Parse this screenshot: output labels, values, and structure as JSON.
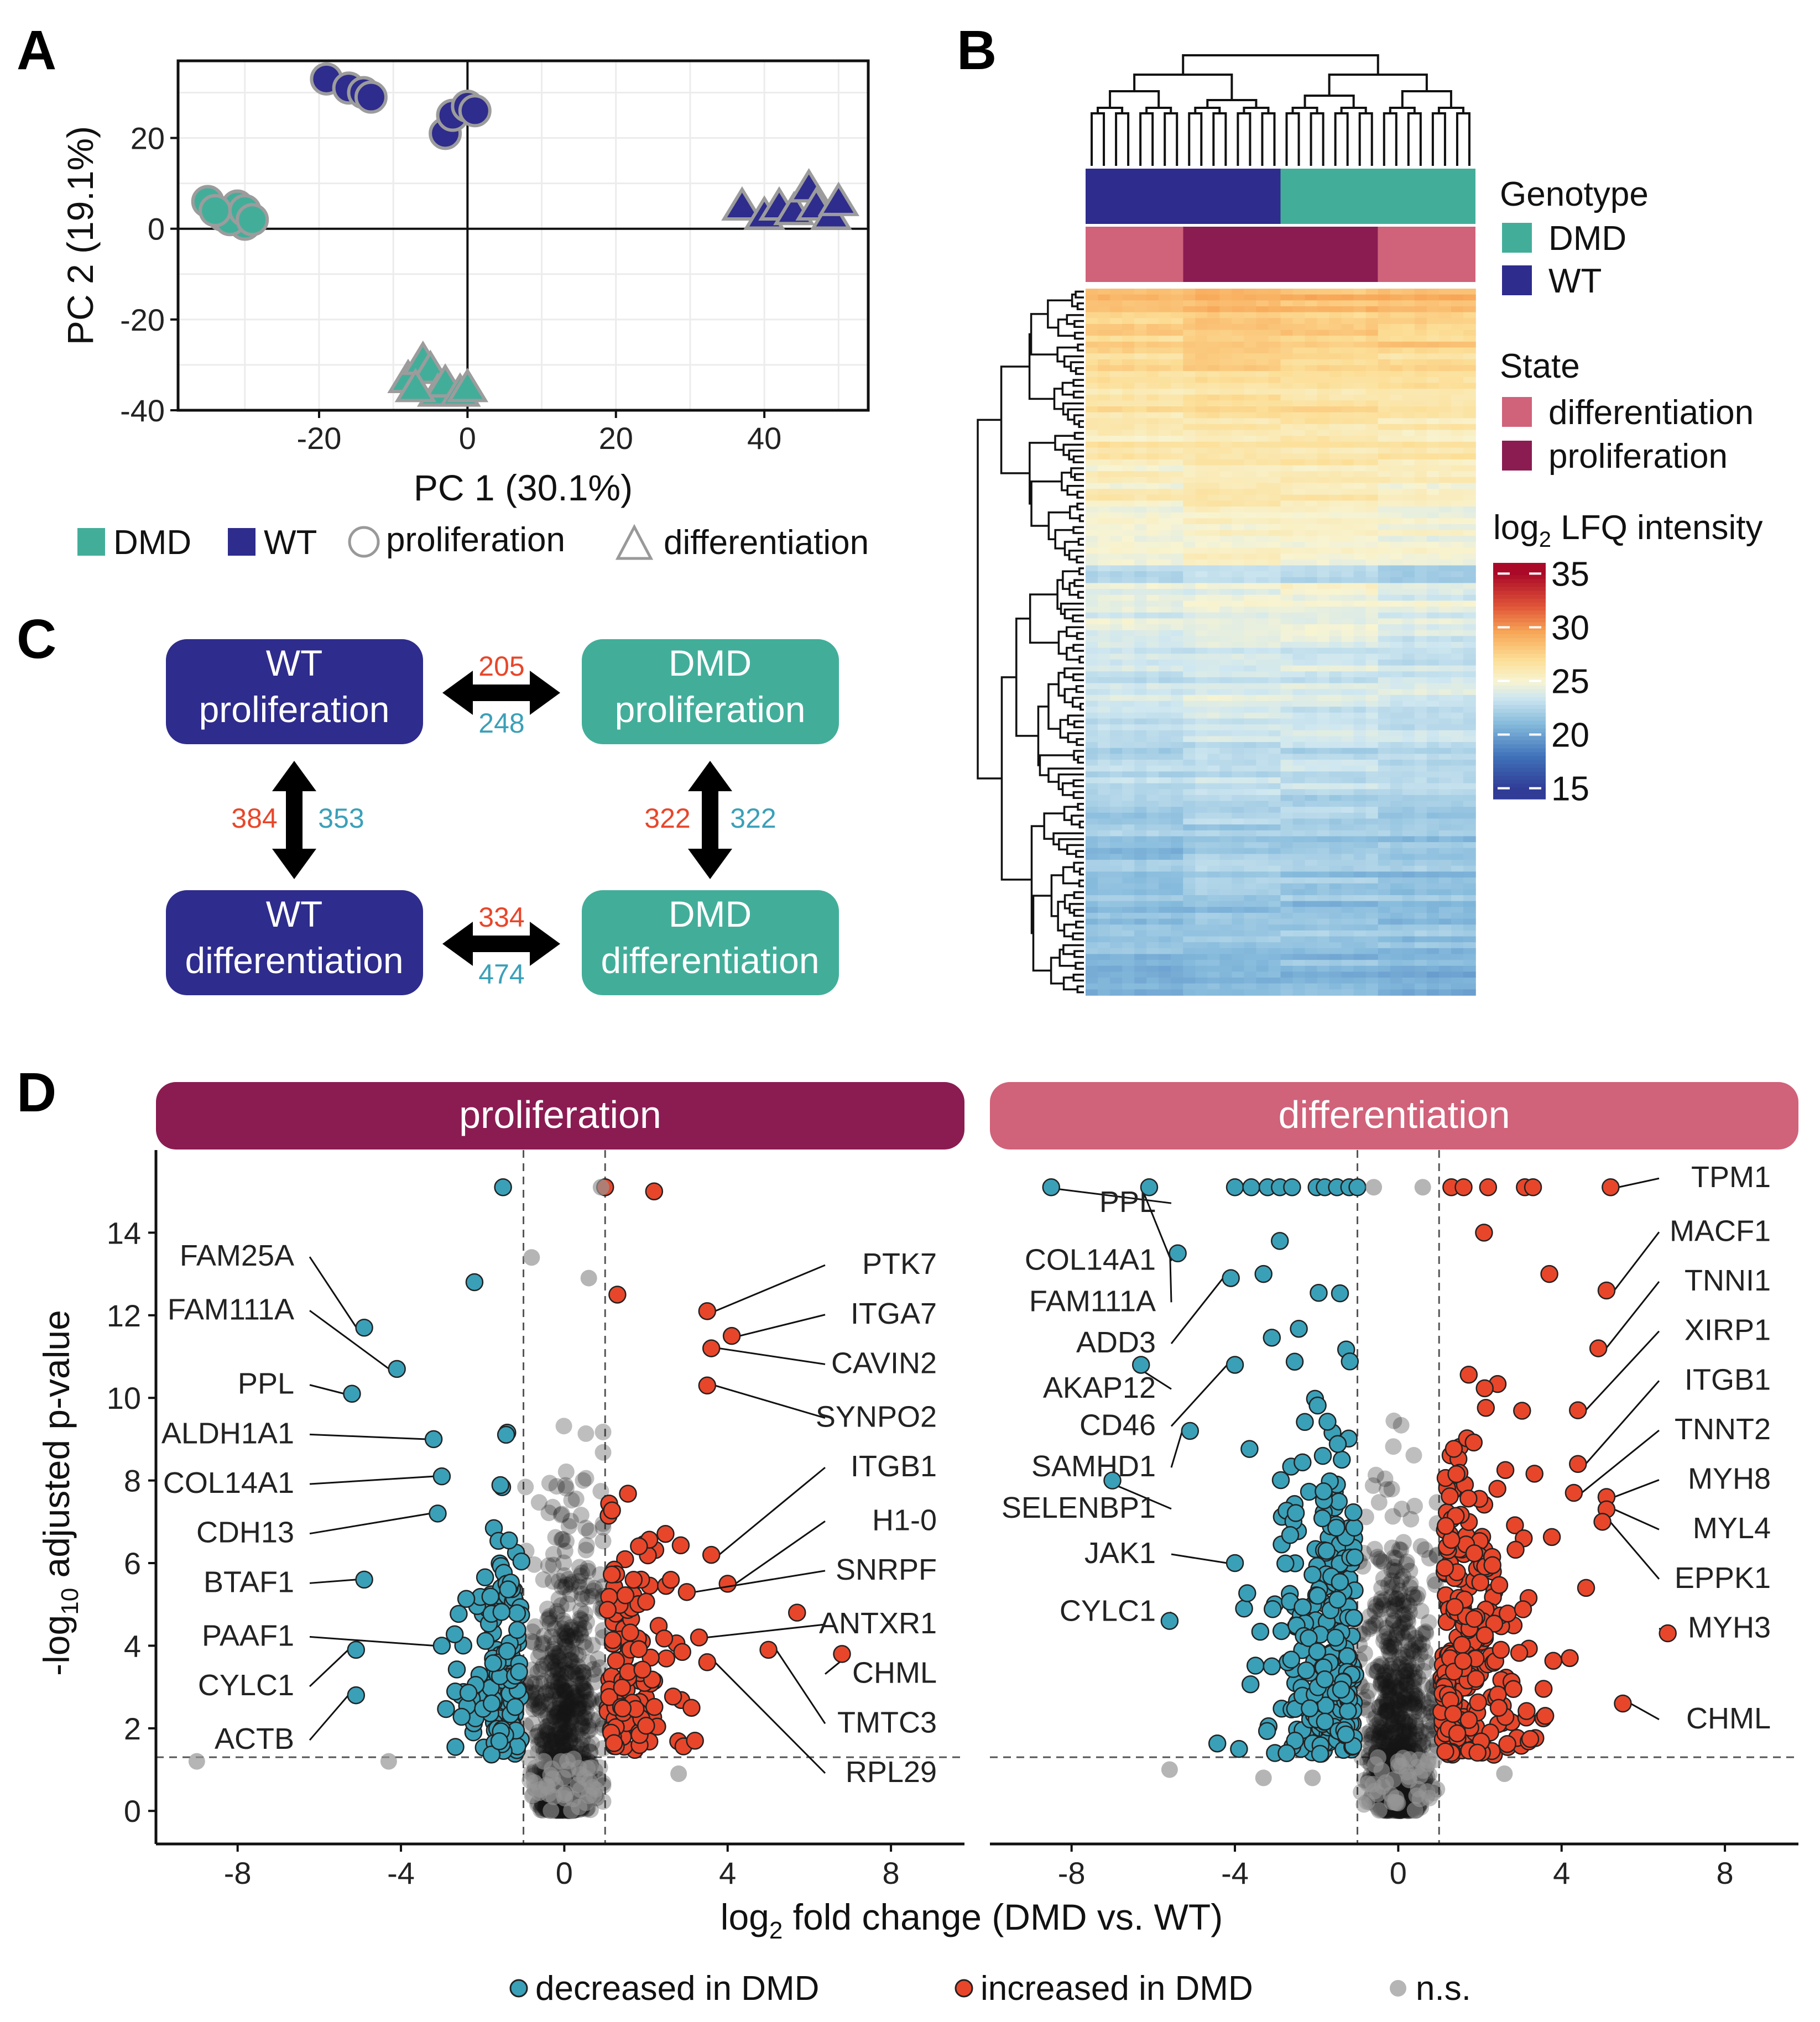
{
  "colors": {
    "dmd": "#42ae9a",
    "wt": "#2e2c8c",
    "state_diff": "#d0627a",
    "state_prolif": "#8a1c52",
    "decreased": "#3aa0b8",
    "increased": "#e8462a",
    "ns": "#9a9a9a"
  },
  "panels": {
    "a": "A",
    "b": "B",
    "c": "C",
    "d": "D"
  },
  "chart_data": [
    {
      "id": "A",
      "type": "scatter",
      "title": "",
      "xlabel": "PC 1 (30.1%)",
      "ylabel": "PC 2 (19.1%)",
      "xlim": [
        -39,
        54
      ],
      "ylim": [
        -40,
        37
      ],
      "xticks": [
        -20,
        0,
        20,
        40
      ],
      "yticks": [
        -40,
        -20,
        0,
        20
      ],
      "grid": true,
      "legend": {
        "placement": "bottom",
        "entries": [
          {
            "label": "DMD",
            "shape": "square",
            "color": "dmd"
          },
          {
            "label": "WT",
            "shape": "square",
            "color": "wt"
          },
          {
            "label": "proliferation",
            "shape": "circle"
          },
          {
            "label": "differentiation",
            "shape": "triangle"
          }
        ]
      },
      "series": [
        {
          "name": "DMD proliferation",
          "genotype": "DMD",
          "state": "proliferation",
          "shape": "circle",
          "points": [
            [
              -35,
              6
            ],
            [
              -33,
              3
            ],
            [
              -31,
              5
            ],
            [
              -30,
              1
            ],
            [
              -32,
              2
            ],
            [
              -34,
              4
            ],
            [
              -30,
              4
            ],
            [
              -29,
              2
            ]
          ]
        },
        {
          "name": "WT proliferation",
          "genotype": "WT",
          "state": "proliferation",
          "shape": "circle",
          "points": [
            [
              -19,
              33
            ],
            [
              -16,
              31
            ],
            [
              -14,
              30
            ],
            [
              -13,
              29
            ],
            [
              -3,
              21
            ],
            [
              -2,
              25
            ],
            [
              0,
              27
            ],
            [
              1,
              26
            ]
          ]
        },
        {
          "name": "DMD differentiation",
          "genotype": "DMD",
          "state": "differentiation",
          "shape": "triangle",
          "points": [
            [
              -8,
              -33
            ],
            [
              -6,
              -29
            ],
            [
              -5,
              -31
            ],
            [
              -4,
              -36
            ],
            [
              -3,
              -34
            ],
            [
              -1,
              -36
            ],
            [
              0,
              -35
            ],
            [
              -7,
              -35
            ]
          ]
        },
        {
          "name": "WT differentiation",
          "genotype": "WT",
          "state": "differentiation",
          "shape": "triangle",
          "points": [
            [
              37,
              5
            ],
            [
              40,
              3
            ],
            [
              42,
              5
            ],
            [
              44,
              4
            ],
            [
              46,
              9
            ],
            [
              47,
              5
            ],
            [
              49,
              3
            ],
            [
              50,
              6
            ]
          ]
        }
      ]
    },
    {
      "id": "B",
      "type": "heatmap",
      "annotation": {
        "genotype": {
          "title": "Genotype",
          "segments": [
            {
              "label": "WT",
              "fraction": 0.5
            },
            {
              "label": "DMD",
              "fraction": 0.5
            }
          ]
        },
        "state": {
          "title": "State",
          "segments": [
            {
              "label": "differentiation",
              "fraction": 0.25
            },
            {
              "label": "proliferation",
              "fraction": 0.5
            },
            {
              "label": "differentiation",
              "fraction": 0.25
            }
          ]
        }
      },
      "legends": {
        "genotype": {
          "title": "Genotype",
          "entries": [
            "DMD",
            "WT"
          ]
        },
        "state": {
          "title": "State",
          "entries": [
            "differentiation",
            "proliferation"
          ]
        },
        "intensity": {
          "title_main": "log",
          "title_sub": "2",
          "title_rest": " LFQ intensity",
          "ticks": [
            35,
            30,
            25,
            20,
            15
          ],
          "range": [
            14,
            36
          ]
        }
      },
      "samples": 32,
      "value_range": [
        15,
        35
      ]
    },
    {
      "id": "C",
      "type": "table",
      "nodes": [
        {
          "id": "wt_prolif",
          "line1": "WT",
          "line2": "proliferation",
          "genotype": "WT"
        },
        {
          "id": "dmd_prolif",
          "line1": "DMD",
          "line2": "proliferation",
          "genotype": "DMD"
        },
        {
          "id": "wt_diff",
          "line1": "WT",
          "line2": "differentiation",
          "genotype": "WT"
        },
        {
          "id": "dmd_diff",
          "line1": "DMD",
          "line2": "differentiation",
          "genotype": "DMD"
        }
      ],
      "edges": [
        {
          "from": "wt_prolif",
          "to": "dmd_prolif",
          "up": "205",
          "down": "248"
        },
        {
          "from": "wt_prolif",
          "to": "wt_diff",
          "up": "384",
          "down": "353"
        },
        {
          "from": "dmd_prolif",
          "to": "dmd_diff",
          "up": "322",
          "down": "322"
        },
        {
          "from": "wt_diff",
          "to": "dmd_diff",
          "up": "334",
          "down": "474"
        }
      ]
    },
    {
      "id": "D",
      "type": "scatter",
      "xlabel_main": "log",
      "xlabel_sub": "2",
      "xlabel_rest": " fold change (DMD vs. WT)",
      "ylabel_main": "-log",
      "ylabel_sub": "10",
      "ylabel_rest": " adjusted p-value",
      "xlim": [
        -10,
        9.8
      ],
      "ylim": [
        -0.8,
        16
      ],
      "xticks": [
        -8,
        -4,
        0,
        4,
        8
      ],
      "yticks": [
        0,
        2,
        4,
        6,
        8,
        10,
        12,
        14
      ],
      "fc_threshold": 1,
      "p_threshold": 1.3,
      "legend": {
        "placement": "bottom",
        "entries": [
          {
            "label": "decreased in DMD",
            "color": "decreased"
          },
          {
            "label": "increased in DMD",
            "color": "increased"
          },
          {
            "label": "n.s.",
            "color": "ns"
          }
        ]
      },
      "facets": [
        {
          "name": "proliferation",
          "strip_color": "state_prolif",
          "random_seed": 11,
          "left_labels": [
            {
              "gene": "FAM25A",
              "x": -4.9,
              "y": 11.7,
              "ly": 13.2
            },
            {
              "gene": "FAM111A",
              "x": -4.1,
              "y": 10.7,
              "ly": 11.9
            },
            {
              "gene": "PPL",
              "x": -5.2,
              "y": 10.1,
              "ly": 10.1
            },
            {
              "gene": "ALDH1A1",
              "x": -3.2,
              "y": 9.0,
              "ly": 8.9
            },
            {
              "gene": "COL14A1",
              "x": -3.0,
              "y": 8.1,
              "ly": 7.7
            },
            {
              "gene": "CDH13",
              "x": -3.1,
              "y": 7.2,
              "ly": 6.5
            },
            {
              "gene": "BTAF1",
              "x": -4.9,
              "y": 5.6,
              "ly": 5.3
            },
            {
              "gene": "PAAF1",
              "x": -3.0,
              "y": 4.0,
              "ly": 4.0
            },
            {
              "gene": "CYLC1",
              "x": -5.1,
              "y": 3.9,
              "ly": 2.8
            },
            {
              "gene": "ACTB",
              "x": -5.1,
              "y": 2.8,
              "ly": 1.5
            }
          ],
          "right_labels": [
            {
              "gene": "PTK7",
              "x": 3.5,
              "y": 12.1,
              "ly": 13.0
            },
            {
              "gene": "ITGA7",
              "x": 4.1,
              "y": 11.5,
              "ly": 11.8
            },
            {
              "gene": "CAVIN2",
              "x": 3.6,
              "y": 11.2,
              "ly": 10.6
            },
            {
              "gene": "SYNPO2",
              "x": 3.5,
              "y": 10.3,
              "ly": 9.3
            },
            {
              "gene": "ITGB1",
              "x": 3.6,
              "y": 6.2,
              "ly": 8.1
            },
            {
              "gene": "H1-0",
              "x": 4.0,
              "y": 5.5,
              "ly": 6.8
            },
            {
              "gene": "SNRPF",
              "x": 3.0,
              "y": 5.3,
              "ly": 5.6
            },
            {
              "gene": "ANTXR1",
              "x": 3.3,
              "y": 4.2,
              "ly": 4.3
            },
            {
              "gene": "CHML",
              "x": 6.8,
              "y": 3.8,
              "ly": 3.1
            },
            {
              "gene": "TMTC3",
              "x": 5.0,
              "y": 3.9,
              "ly": 1.9
            },
            {
              "gene": "RPL29",
              "x": 3.5,
              "y": 3.6,
              "ly": 0.7
            }
          ],
          "extra_points": [
            [
              -1.5,
              15.1,
              "decreased"
            ],
            [
              1.0,
              15.1,
              "increased"
            ],
            [
              2.2,
              15.0,
              "increased"
            ],
            [
              0.9,
              15.1,
              "ns"
            ],
            [
              -0.8,
              13.4,
              "ns"
            ],
            [
              0.6,
              12.9,
              "ns"
            ],
            [
              1.3,
              12.5,
              "increased"
            ],
            [
              -2.2,
              12.8,
              "decreased"
            ],
            [
              5.7,
              4.8,
              "increased"
            ],
            [
              -9.0,
              1.2,
              "ns"
            ],
            [
              -4.3,
              1.2,
              "ns"
            ],
            [
              2.8,
              0.9,
              "ns"
            ],
            [
              3.2,
              1.7,
              "increased"
            ]
          ]
        },
        {
          "name": "differentiation",
          "strip_color": "state_diff",
          "random_seed": 29,
          "left_labels": [
            {
              "gene": "PPL",
              "x": -8.5,
              "y": 15.1,
              "ly": 14.5
            },
            {
              "gene": "COL14A1",
              "x": -6.1,
              "y": 15.1,
              "ly": 13.1
            },
            {
              "gene": "FAM111A",
              "x": -5.4,
              "y": 13.5,
              "ly": 12.1
            },
            {
              "gene": "ADD3",
              "x": -4.1,
              "y": 12.9,
              "ly": 11.1
            },
            {
              "gene": "AKAP12",
              "x": -6.3,
              "y": 10.8,
              "ly": 10.0
            },
            {
              "gene": "CD46",
              "x": -4.0,
              "y": 10.8,
              "ly": 9.1
            },
            {
              "gene": "SAMHD1",
              "x": -5.1,
              "y": 9.2,
              "ly": 8.1
            },
            {
              "gene": "SELENBP1",
              "x": -7.0,
              "y": 8.0,
              "ly": 7.1
            },
            {
              "gene": "JAK1",
              "x": -4.0,
              "y": 6.0,
              "ly": 6.0
            },
            {
              "gene": "CYLC1",
              "x": -5.6,
              "y": 4.6,
              "ly": 4.6
            }
          ],
          "right_labels": [
            {
              "gene": "TPM1",
              "x": 5.2,
              "y": 15.1,
              "ly": 15.1
            },
            {
              "gene": "MACF1",
              "x": 5.1,
              "y": 12.6,
              "ly": 13.8
            },
            {
              "gene": "TNNI1",
              "x": 4.9,
              "y": 11.2,
              "ly": 12.6
            },
            {
              "gene": "XIRP1",
              "x": 4.4,
              "y": 9.7,
              "ly": 11.4
            },
            {
              "gene": "ITGB1",
              "x": 4.4,
              "y": 8.4,
              "ly": 10.2
            },
            {
              "gene": "TNNT2",
              "x": 4.3,
              "y": 7.7,
              "ly": 9.0
            },
            {
              "gene": "MYH8",
              "x": 5.1,
              "y": 7.6,
              "ly": 7.8
            },
            {
              "gene": "MYL4",
              "x": 5.1,
              "y": 7.3,
              "ly": 6.6
            },
            {
              "gene": "EPPK1",
              "x": 5.0,
              "y": 7.0,
              "ly": 5.4
            },
            {
              "gene": "MYH3",
              "x": 6.6,
              "y": 4.3,
              "ly": 4.2
            },
            {
              "gene": "CHML",
              "x": 5.5,
              "y": 2.6,
              "ly": 2.0
            }
          ],
          "extra_points": [
            [
              -4.0,
              15.1,
              "decreased"
            ],
            [
              -3.6,
              15.1,
              "decreased"
            ],
            [
              -3.2,
              15.1,
              "decreased"
            ],
            [
              -2.9,
              15.1,
              "decreased"
            ],
            [
              -2.6,
              15.1,
              "decreased"
            ],
            [
              -2.0,
              15.1,
              "decreased"
            ],
            [
              -1.8,
              15.1,
              "decreased"
            ],
            [
              -1.5,
              15.1,
              "decreased"
            ],
            [
              -1.2,
              15.1,
              "decreased"
            ],
            [
              -1.0,
              15.1,
              "decreased"
            ],
            [
              -0.6,
              15.1,
              "ns"
            ],
            [
              0.6,
              15.1,
              "ns"
            ],
            [
              1.3,
              15.1,
              "increased"
            ],
            [
              1.6,
              15.1,
              "increased"
            ],
            [
              2.2,
              15.1,
              "increased"
            ],
            [
              3.1,
              15.1,
              "increased"
            ],
            [
              3.3,
              15.1,
              "increased"
            ],
            [
              2.1,
              14.0,
              "increased"
            ],
            [
              -2.9,
              13.8,
              "decreased"
            ],
            [
              -3.3,
              13.0,
              "decreased"
            ],
            [
              3.7,
              13.0,
              "increased"
            ],
            [
              -3.9,
              1.5,
              "decreased"
            ],
            [
              -3.3,
              0.8,
              "ns"
            ],
            [
              -5.6,
              1.0,
              "ns"
            ],
            [
              2.6,
              0.9,
              "ns"
            ],
            [
              4.2,
              3.7,
              "increased"
            ],
            [
              3.6,
              2.3,
              "increased"
            ],
            [
              4.6,
              5.4,
              "increased"
            ],
            [
              -2.1,
              0.8,
              "ns"
            ]
          ]
        }
      ]
    }
  ]
}
